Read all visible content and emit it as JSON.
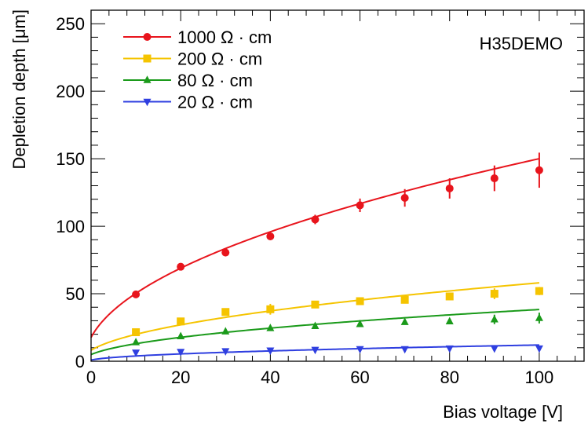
{
  "chart_data": {
    "type": "scatter",
    "annotation": "H35DEMO",
    "xlabel": "Bias voltage [V]",
    "ylabel": "Depletion depth [μm]",
    "xlim": [
      0,
      110
    ],
    "ylim": [
      0,
      260
    ],
    "xticks": [
      0,
      20,
      40,
      60,
      80,
      100
    ],
    "yticks": [
      0,
      50,
      100,
      150,
      200,
      250
    ],
    "x_minor_step": 4,
    "y_minor_step": 10,
    "grid": false,
    "legend_position": "top-left",
    "series": [
      {
        "name": "1000 Ω · cm",
        "color": "#e8141c",
        "marker": "circle",
        "x": [
          10,
          20,
          30,
          40,
          50,
          60,
          70,
          80,
          90,
          100
        ],
        "y": [
          49.5,
          70,
          80.5,
          92.5,
          105,
          115.5,
          121,
          128,
          135.5,
          141.5
        ],
        "yerr": [
          1.5,
          1.5,
          2,
          2,
          3.5,
          5,
          6.5,
          7.5,
          9.5,
          13
        ],
        "fit": {
          "model": "a*sqrt(x+c)",
          "a": 14.9,
          "c": 1.4,
          "x_range": [
            0,
            100
          ]
        }
      },
      {
        "name": "200 Ω · cm",
        "color": "#f5c400",
        "marker": "square",
        "x": [
          10,
          20,
          30,
          40,
          50,
          60,
          70,
          80,
          90,
          100
        ],
        "y": [
          21.5,
          29.5,
          36.5,
          38.5,
          42,
          44.5,
          45.5,
          48,
          50,
          52
        ],
        "yerr": [
          1,
          1,
          1.5,
          4,
          2.5,
          2,
          2,
          2,
          4,
          3
        ],
        "fit": {
          "model": "a*sqrt(x+c)",
          "a": 5.75,
          "c": 2,
          "x_range": [
            0,
            100
          ]
        }
      },
      {
        "name": "80 Ω · cm",
        "color": "#1a9a1a",
        "marker": "triangle-up",
        "x": [
          10,
          20,
          30,
          40,
          50,
          60,
          70,
          80,
          90,
          100
        ],
        "y": [
          14,
          18.5,
          22,
          24.5,
          26,
          27.5,
          29,
          29.5,
          31,
          32
        ],
        "yerr": [
          1,
          1,
          1,
          1,
          1.5,
          1.5,
          2,
          2,
          3.5,
          4
        ],
        "fit": {
          "model": "a*sqrt(x+c)",
          "a": 3.8,
          "c": 1.7,
          "x_range": [
            0,
            100
          ]
        }
      },
      {
        "name": "20 Ω · cm",
        "color": "#2f3fe0",
        "marker": "triangle-down",
        "x": [
          10,
          20,
          30,
          40,
          50,
          60,
          70,
          80,
          90,
          100
        ],
        "y": [
          6.5,
          7,
          7.5,
          8,
          8.5,
          9,
          9,
          9.5,
          9.5,
          9.5
        ],
        "yerr": [
          0.5,
          0.5,
          0.5,
          0.5,
          0.5,
          0.5,
          0.5,
          0.5,
          0.5,
          0.5
        ],
        "fit": {
          "model": "a*sqrt(x+c)",
          "a": 1.2,
          "c": 0.5,
          "x_range": [
            0,
            100
          ]
        }
      }
    ]
  }
}
